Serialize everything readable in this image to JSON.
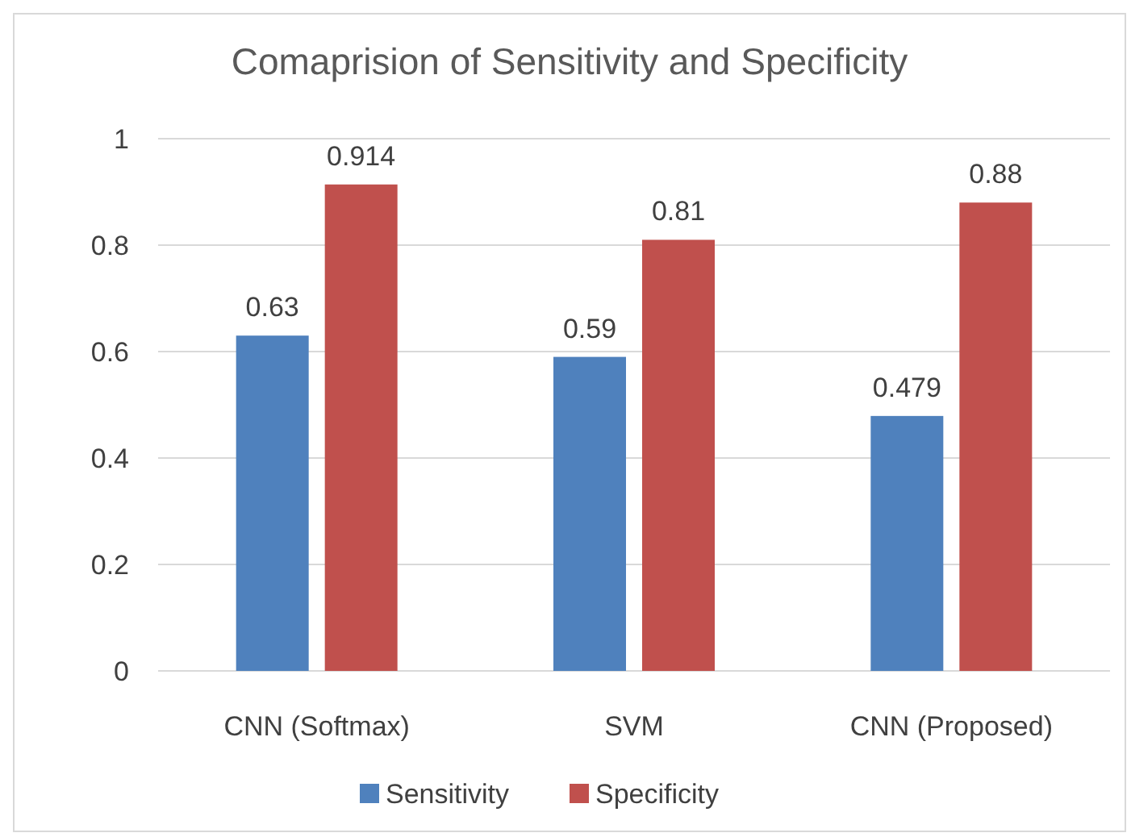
{
  "chart_data": {
    "type": "bar",
    "title": "Comaprision of Sensitivity and Specificity",
    "categories": [
      "CNN (Softmax)",
      "SVM",
      "CNN (Proposed)"
    ],
    "series": [
      {
        "name": "Sensitivity",
        "color": "#4f81bd",
        "values": [
          0.63,
          0.59,
          0.479
        ]
      },
      {
        "name": "Specificity",
        "color": "#c0504d",
        "values": [
          0.914,
          0.81,
          0.88
        ]
      }
    ],
    "ylim": [
      0,
      1
    ],
    "yticks": [
      0,
      0.2,
      0.4,
      0.6,
      0.8,
      1
    ],
    "grid": "y",
    "legend": "bottom",
    "data_labels": true
  }
}
